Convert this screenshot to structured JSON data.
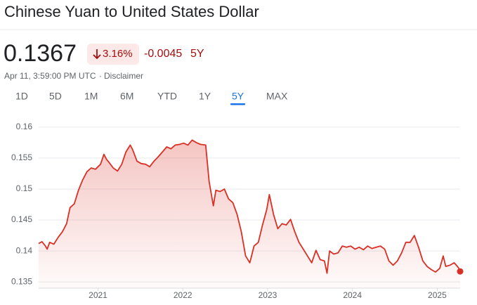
{
  "header": {
    "title": "Chinese Yuan to United States Dollar",
    "price": "0.1367",
    "change_pct": "3.16%",
    "change_abs": "-0.0045",
    "period": "5Y",
    "timestamp": "Apr 11, 3:59:00 PM UTC",
    "separator": "·",
    "disclaimer": "Disclaimer"
  },
  "tabs": [
    "1D",
    "5D",
    "1M",
    "6M",
    "YTD",
    "1Y",
    "5Y",
    "MAX"
  ],
  "selected_tab": 6,
  "chart_data": {
    "type": "area",
    "x": [
      2020.3,
      2020.34,
      2020.38,
      2020.4,
      2020.43,
      2020.48,
      2020.53,
      2020.58,
      2020.63,
      2020.67,
      2020.72,
      2020.77,
      2020.82,
      2020.87,
      2020.92,
      2020.97,
      2021.03,
      2021.07,
      2021.1,
      2021.13,
      2021.18,
      2021.23,
      2021.28,
      2021.33,
      2021.38,
      2021.41,
      2021.46,
      2021.51,
      2021.56,
      2021.61,
      2021.66,
      2021.71,
      2021.76,
      2021.81,
      2021.86,
      2021.91,
      2021.96,
      2022.01,
      2022.06,
      2022.11,
      2022.16,
      2022.21,
      2022.27,
      2022.31,
      2022.36,
      2022.39,
      2022.44,
      2022.49,
      2022.54,
      2022.59,
      2022.64,
      2022.69,
      2022.74,
      2022.79,
      2022.84,
      2022.89,
      2022.94,
      2022.99,
      2023.02,
      2023.07,
      2023.12,
      2023.17,
      2023.22,
      2023.27,
      2023.32,
      2023.37,
      2023.42,
      2023.47,
      2023.52,
      2023.57,
      2023.62,
      2023.67,
      2023.7,
      2023.73,
      2023.78,
      2023.83,
      2023.88,
      2023.93,
      2023.98,
      2024.03,
      2024.08,
      2024.13,
      2024.18,
      2024.23,
      2024.28,
      2024.33,
      2024.38,
      2024.43,
      2024.48,
      2024.53,
      2024.58,
      2024.63,
      2024.68,
      2024.73,
      2024.78,
      2024.83,
      2024.88,
      2024.93,
      2024.98,
      2025.03,
      2025.07,
      2025.1,
      2025.15,
      2025.2,
      2025.25,
      2025.27
    ],
    "values": [
      0.1412,
      0.1415,
      0.1408,
      0.1403,
      0.1414,
      0.1411,
      0.1422,
      0.1431,
      0.1444,
      0.147,
      0.1476,
      0.1498,
      0.1515,
      0.1528,
      0.1534,
      0.1532,
      0.154,
      0.1556,
      0.1548,
      0.1543,
      0.1534,
      0.1529,
      0.154,
      0.156,
      0.1571,
      0.1563,
      0.1545,
      0.1541,
      0.154,
      0.1536,
      0.1545,
      0.1552,
      0.156,
      0.1568,
      0.1565,
      0.1571,
      0.1572,
      0.1574,
      0.1571,
      0.1579,
      0.1575,
      0.1572,
      0.1571,
      0.1512,
      0.1473,
      0.1498,
      0.1496,
      0.15,
      0.1484,
      0.1478,
      0.1459,
      0.1431,
      0.1392,
      0.1381,
      0.1408,
      0.1414,
      0.1442,
      0.1467,
      0.1491,
      0.1459,
      0.1436,
      0.1444,
      0.1442,
      0.1451,
      0.1431,
      0.1414,
      0.1403,
      0.1392,
      0.1381,
      0.1401,
      0.1386,
      0.1384,
      0.1364,
      0.14,
      0.1395,
      0.1397,
      0.1408,
      0.1406,
      0.1408,
      0.1403,
      0.1406,
      0.1402,
      0.1408,
      0.1404,
      0.1406,
      0.1408,
      0.1403,
      0.1384,
      0.1377,
      0.1384,
      0.1397,
      0.1414,
      0.1414,
      0.1425,
      0.1406,
      0.1384,
      0.1375,
      0.137,
      0.1366,
      0.1372,
      0.1392,
      0.1375,
      0.1377,
      0.1381,
      0.1373,
      0.1367
    ],
    "color": "#d93025",
    "xlim": [
      2020.3,
      2025.27
    ],
    "xticks": [
      2021,
      2022,
      2023,
      2024,
      2025
    ],
    "ylim": [
      0.134,
      0.161
    ],
    "yticks": [
      0.135,
      0.14,
      0.145,
      0.15,
      0.155,
      0.16
    ],
    "grid": true
  }
}
